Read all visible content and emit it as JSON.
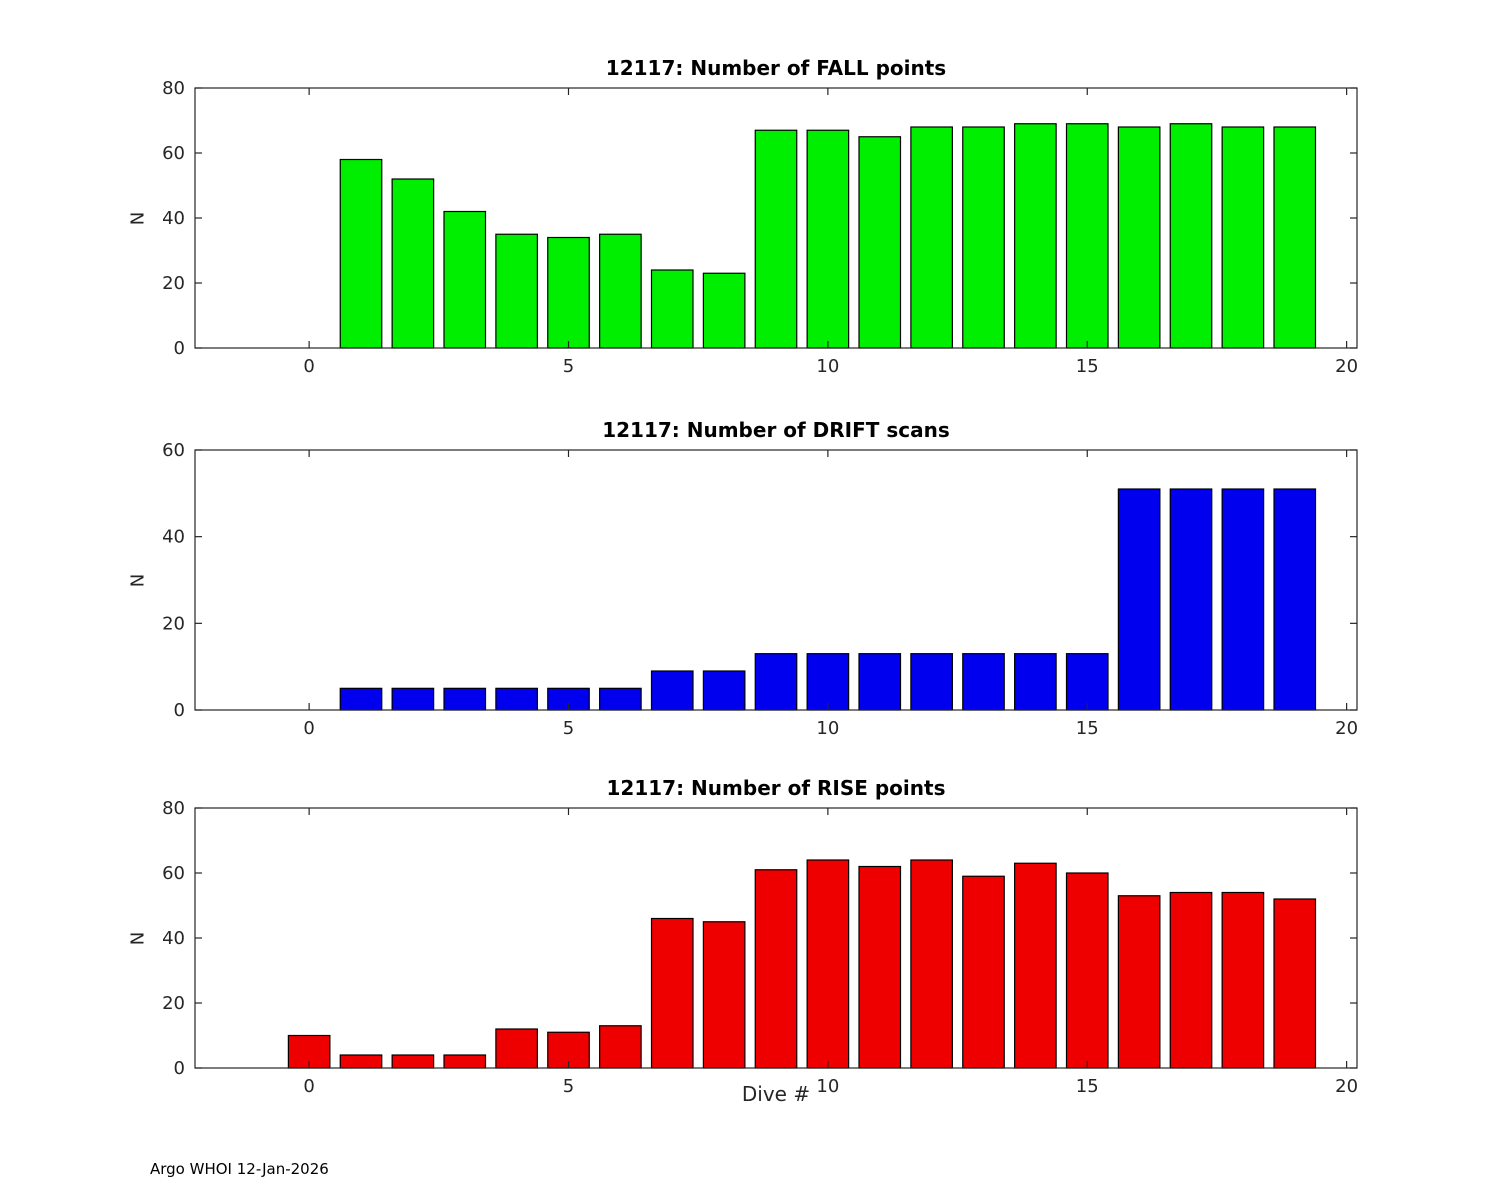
{
  "page": {
    "background": "#ffffff"
  },
  "footer": {
    "text": "Argo WHOI 12-Jan-2026"
  },
  "chart_data": [
    {
      "type": "bar",
      "title": "12117: Number of FALL points",
      "xlabel": "",
      "ylabel": "N",
      "color": "#00ee00",
      "edge_color": "#000000",
      "x": [
        1,
        2,
        3,
        4,
        5,
        6,
        7,
        8,
        9,
        10,
        11,
        12,
        13,
        14,
        15,
        16,
        17,
        18,
        19
      ],
      "values": [
        58,
        52,
        42,
        35,
        34,
        35,
        24,
        23,
        67,
        67,
        65,
        68,
        68,
        69,
        69,
        68,
        69,
        68,
        68
      ],
      "xlim": [
        -2.2,
        20.2
      ],
      "ylim": [
        0,
        80
      ],
      "xticks": [
        0,
        5,
        10,
        15,
        20
      ],
      "yticks": [
        0,
        20,
        40,
        60,
        80
      ],
      "bar_width": 0.8,
      "grid": false,
      "legend": null
    },
    {
      "type": "bar",
      "title": "12117: Number of DRIFT scans",
      "xlabel": "",
      "ylabel": "N",
      "color": "#0000ee",
      "edge_color": "#000000",
      "x": [
        1,
        2,
        3,
        4,
        5,
        6,
        7,
        8,
        9,
        10,
        11,
        12,
        13,
        14,
        15,
        16,
        17,
        18,
        19
      ],
      "values": [
        5,
        5,
        5,
        5,
        5,
        5,
        9,
        9,
        13,
        13,
        13,
        13,
        13,
        13,
        13,
        51,
        51,
        51,
        51
      ],
      "xlim": [
        -2.2,
        20.2
      ],
      "ylim": [
        0,
        60
      ],
      "xticks": [
        0,
        5,
        10,
        15,
        20
      ],
      "yticks": [
        0,
        20,
        40,
        60
      ],
      "bar_width": 0.8,
      "grid": false,
      "legend": null
    },
    {
      "type": "bar",
      "title": "12117: Number of RISE points",
      "xlabel": "Dive #",
      "ylabel": "N",
      "color": "#ee0000",
      "edge_color": "#000000",
      "x": [
        0,
        1,
        2,
        3,
        4,
        5,
        6,
        7,
        8,
        9,
        10,
        11,
        12,
        13,
        14,
        15,
        16,
        17,
        18,
        19
      ],
      "values": [
        10,
        4,
        4,
        4,
        12,
        11,
        13,
        46,
        45,
        61,
        64,
        62,
        64,
        59,
        63,
        60,
        53,
        54,
        54,
        52
      ],
      "xlim": [
        -2.2,
        20.2
      ],
      "ylim": [
        0,
        80
      ],
      "xticks": [
        0,
        5,
        10,
        15,
        20
      ],
      "yticks": [
        0,
        20,
        40,
        60,
        80
      ],
      "bar_width": 0.8,
      "grid": false,
      "legend": null
    }
  ]
}
